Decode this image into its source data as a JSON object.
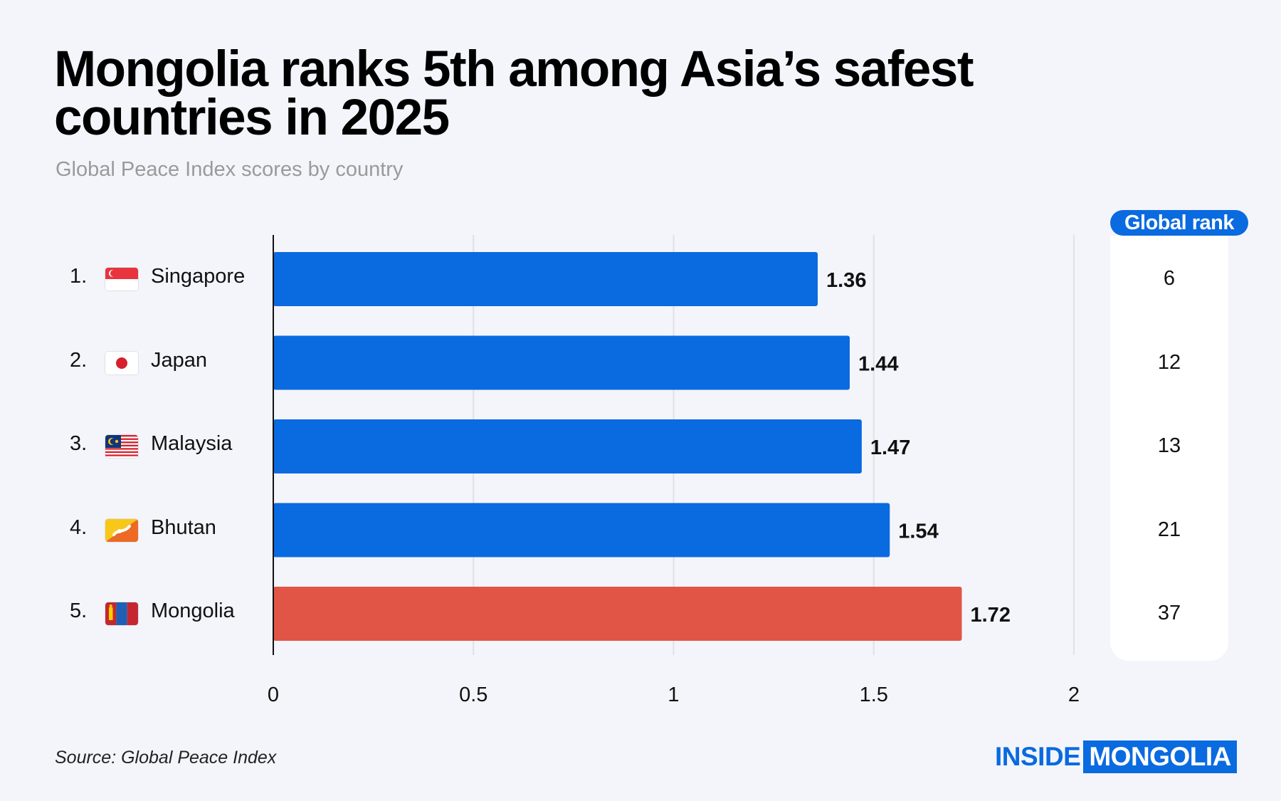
{
  "title_line1": "Mongolia ranks 5th among Asia’s safest",
  "title_line2": "countries in 2025",
  "subtitle": "Global Peace Index scores by country",
  "rank_header": "Global rank",
  "source": "Source: Global Peace Index",
  "brand": {
    "part1": "INSIDE",
    "part2": "MONGOLIA"
  },
  "colors": {
    "bar": "#0a6ae0",
    "highlight": "#e05545",
    "grid": "#e0e0e6",
    "axis": "#111111"
  },
  "rows": [
    {
      "num": "1.",
      "name": "Singapore",
      "flag": "singapore-flag-icon",
      "rank": "6"
    },
    {
      "num": "2.",
      "name": "Japan",
      "flag": "japan-flag-icon",
      "rank": "12"
    },
    {
      "num": "3.",
      "name": "Malaysia",
      "flag": "malaysia-flag-icon",
      "rank": "13"
    },
    {
      "num": "4.",
      "name": "Bhutan",
      "flag": "bhutan-flag-icon",
      "rank": "21"
    },
    {
      "num": "5.",
      "name": "Mongolia",
      "flag": "mongolia-flag-icon",
      "rank": "37"
    }
  ],
  "chart_data": {
    "type": "bar",
    "orientation": "horizontal",
    "title": "Mongolia ranks 5th among Asia’s safest countries in 2025",
    "subtitle": "Global Peace Index scores by country",
    "categories": [
      "Singapore",
      "Japan",
      "Malaysia",
      "Bhutan",
      "Mongolia"
    ],
    "values": [
      1.36,
      1.44,
      1.47,
      1.54,
      1.72
    ],
    "value_labels": [
      "1.36",
      "1.44",
      "1.47",
      "1.54",
      "1.72"
    ],
    "highlight": "Mongolia",
    "xlim": [
      0,
      2
    ],
    "xticks": [
      0,
      0.5,
      1,
      1.5,
      2
    ],
    "xtick_labels": [
      "0",
      "0.5",
      "1",
      "1.5",
      "2"
    ],
    "grid": true,
    "xlabel": "",
    "ylabel": ""
  }
}
